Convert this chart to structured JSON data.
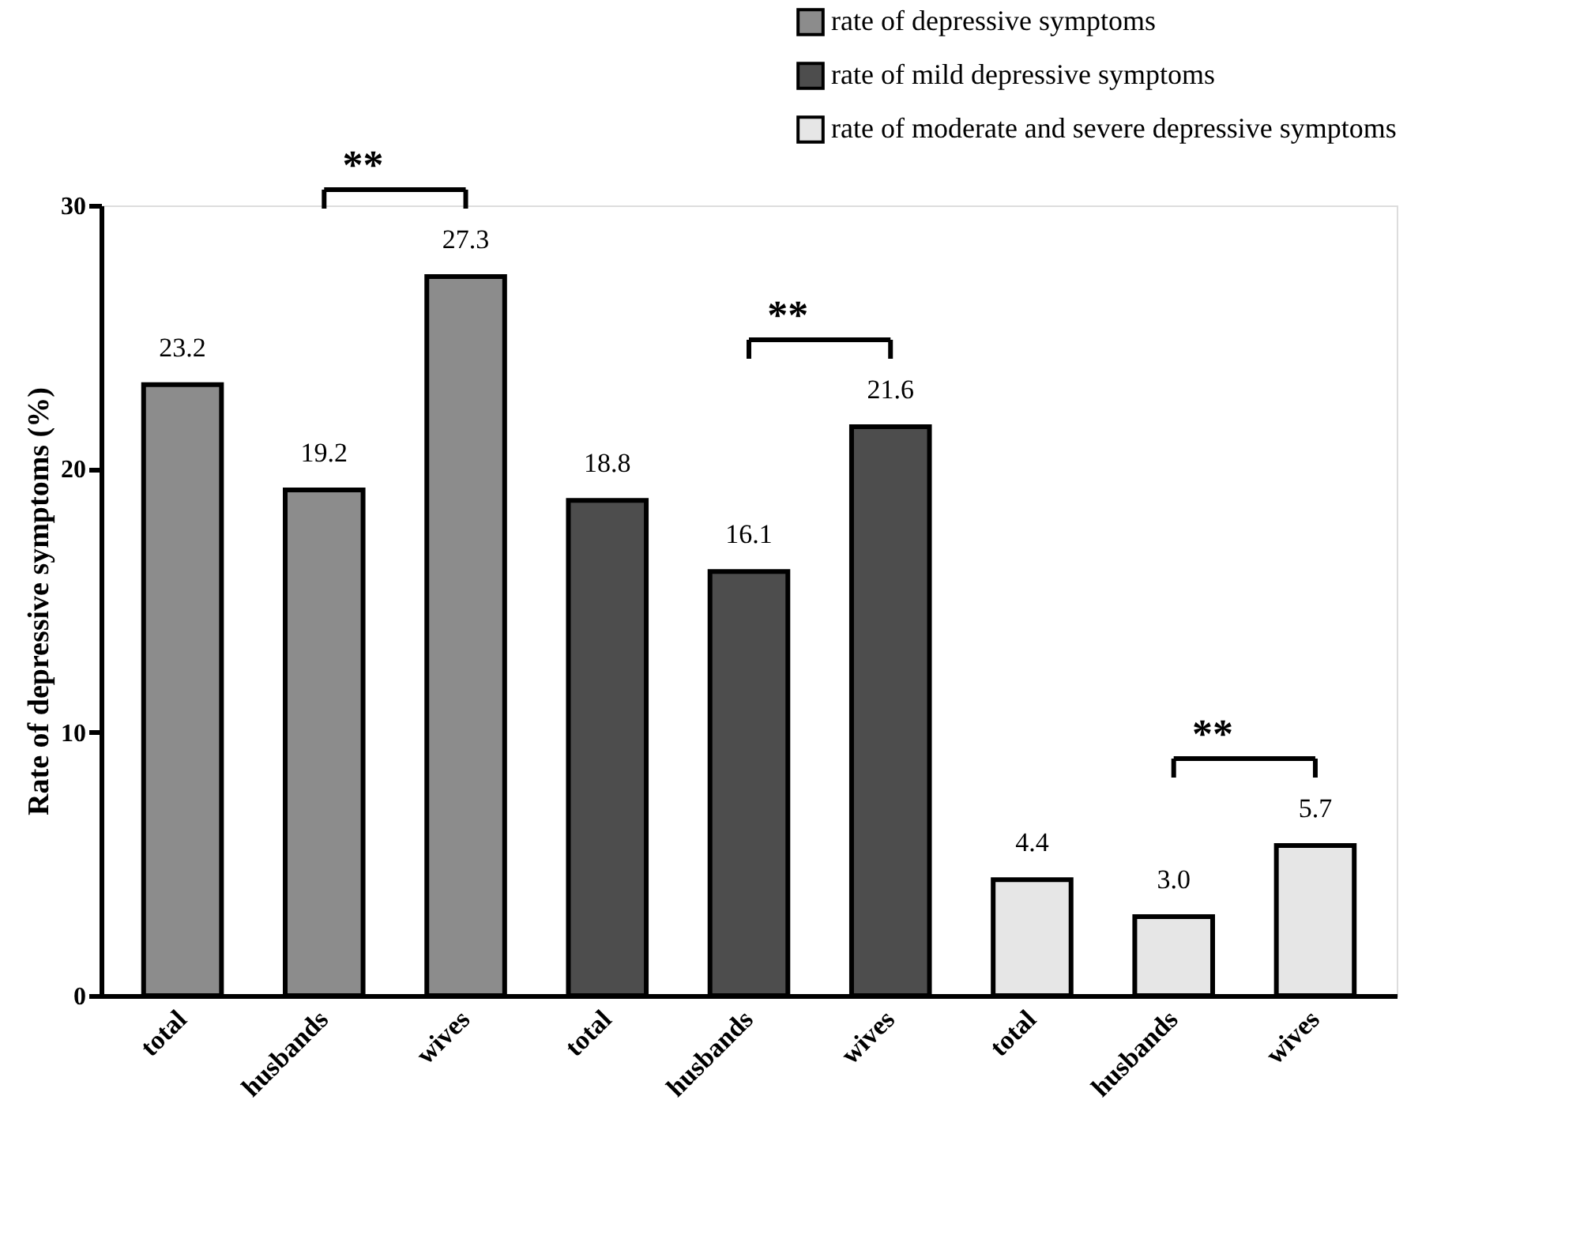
{
  "chart_data": {
    "type": "bar",
    "ylabel": "Rate of depressive symptoms (%)",
    "categories": [
      "total",
      "husbands",
      "wives",
      "total",
      "husbands",
      "wives",
      "total",
      "husbands",
      "wives"
    ],
    "series": [
      {
        "name": "rate of depressive symptoms",
        "color": "#8c8c8c",
        "values": [
          23.2,
          19.2,
          27.3,
          null,
          null,
          null,
          null,
          null,
          null
        ],
        "value_labels": [
          "23.2",
          "19.2",
          "27.3",
          null,
          null,
          null,
          null,
          null,
          null
        ]
      },
      {
        "name": "rate of mild depressive symptoms",
        "color": "#4d4d4d",
        "values": [
          null,
          null,
          null,
          18.8,
          16.1,
          21.6,
          null,
          null,
          null
        ],
        "value_labels": [
          null,
          null,
          null,
          "18.8",
          "16.1",
          "21.6",
          null,
          null,
          null
        ]
      },
      {
        "name": "rate of moderate and severe depressive symptoms",
        "color": "#e6e6e6",
        "values": [
          null,
          null,
          null,
          null,
          null,
          null,
          4.4,
          3.0,
          5.7
        ],
        "value_labels": [
          null,
          null,
          null,
          null,
          null,
          null,
          "4.4",
          "3.0",
          "5.7"
        ]
      }
    ],
    "ylim": [
      0,
      30
    ],
    "yticks": [
      0,
      10,
      20,
      30
    ],
    "grid": false,
    "legend": "top right",
    "annotations": [
      "**",
      "**",
      "**"
    ]
  }
}
